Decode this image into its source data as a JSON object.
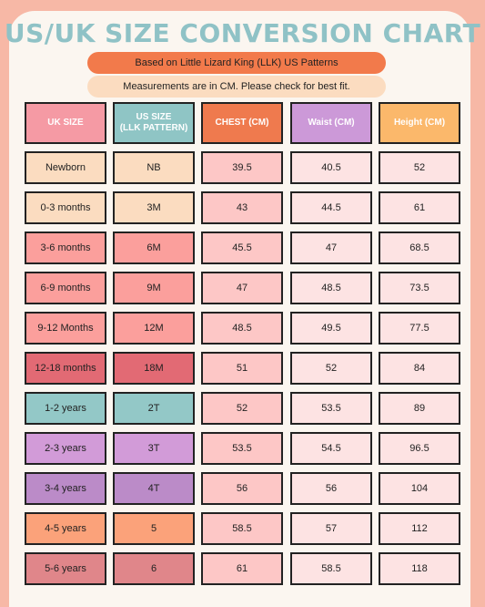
{
  "title": "US/UK SIZE CONVERSION CHART",
  "subtitle": "Based on Little Lizard King (LLK) US Patterns",
  "note": "Measurements are in CM. Please check for best fit.",
  "headers": [
    {
      "label": "UK SIZE",
      "color": "#f59aa4"
    },
    {
      "label": "US SIZE\n(LLK PATTERN)",
      "color": "#8fc5c5"
    },
    {
      "label": "CHEST (CM)",
      "color": "#ef7a4e"
    },
    {
      "label": "Waist (CM)",
      "color": "#cc99d8"
    },
    {
      "label": "Height (CM)",
      "color": "#fbb86b"
    }
  ],
  "rows": [
    {
      "uk": "Newborn",
      "us": "NB",
      "chest": "39.5",
      "waist": "40.5",
      "height": "52",
      "color": "#fbdcc0"
    },
    {
      "uk": "0-3 months",
      "us": "3M",
      "chest": "43",
      "waist": "44.5",
      "height": "61",
      "color": "#fbdcc0"
    },
    {
      "uk": "3-6 months",
      "us": "6M",
      "chest": "45.5",
      "waist": "47",
      "height": "68.5",
      "color": "#fb9f9c"
    },
    {
      "uk": "6-9 months",
      "us": "9M",
      "chest": "47",
      "waist": "48.5",
      "height": "73.5",
      "color": "#fb9f9c"
    },
    {
      "uk": "9-12 Months",
      "us": "12M",
      "chest": "48.5",
      "waist": "49.5",
      "height": "77.5",
      "color": "#fb9f9c"
    },
    {
      "uk": "12-18 months",
      "us": "18M",
      "chest": "51",
      "waist": "52",
      "height": "84",
      "color": "#e26a74"
    },
    {
      "uk": "1-2 years",
      "us": "2T",
      "chest": "52",
      "waist": "53.5",
      "height": "89",
      "color": "#93c8c7"
    },
    {
      "uk": "2-3 years",
      "us": "3T",
      "chest": "53.5",
      "waist": "54.5",
      "height": "96.5",
      "color": "#d29bd8"
    },
    {
      "uk": "3-4 years",
      "us": "4T",
      "chest": "56",
      "waist": "56",
      "height": "104",
      "color": "#bb8bc8"
    },
    {
      "uk": "4-5 years",
      "us": "5",
      "chest": "58.5",
      "waist": "57",
      "height": "112",
      "color": "#fba27a"
    },
    {
      "uk": "5-6 years",
      "us": "6",
      "chest": "61",
      "waist": "58.5",
      "height": "118",
      "color": "#e0868a"
    }
  ],
  "colors": {
    "background": "#f7b8a6",
    "card": "#fbf6f0",
    "title": "#8fc2c6",
    "chest_cells": "#fdc7c6",
    "other_cells": "#fde3e3"
  }
}
